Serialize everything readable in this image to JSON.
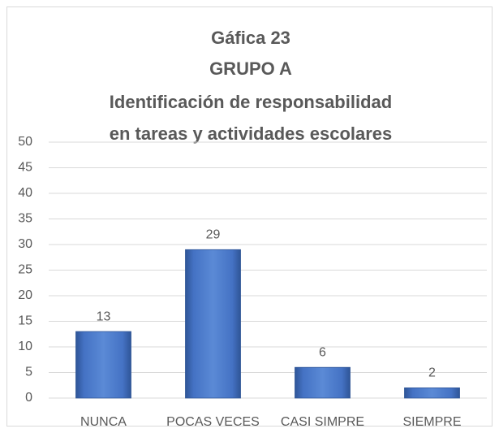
{
  "chart_data": {
    "type": "bar",
    "title": [
      "Gáfica 23",
      "GRUPO A",
      "Identificación de responsabilidad",
      "en tareas y actividades escolares"
    ],
    "categories": [
      "NUNCA",
      "POCAS VECES",
      "CASI SIMPRE",
      "SIEMPRE"
    ],
    "values": [
      13,
      29,
      6,
      2
    ],
    "color": "#4472c4",
    "ylim": [
      0,
      50
    ],
    "yticks": [
      0,
      5,
      10,
      15,
      20,
      25,
      30,
      35,
      40,
      45,
      50
    ],
    "grid": true
  }
}
